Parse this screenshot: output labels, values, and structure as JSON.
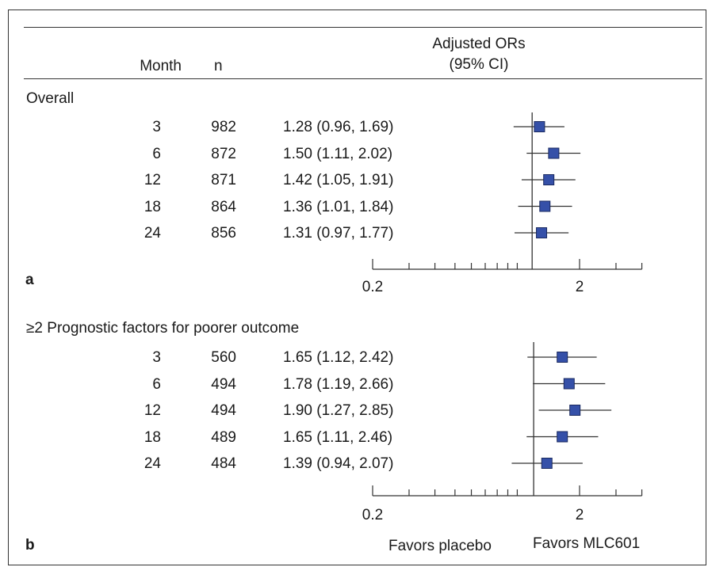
{
  "header": {
    "month_label": "Month",
    "n_label": "n",
    "or_label_line1": "Adjusted ORs",
    "or_label_line2": "(95% CI)"
  },
  "colors": {
    "marker_fill": "#3550a8",
    "marker_stroke": "#1a2a60",
    "line": "#333333"
  },
  "footer": {
    "favors_left": "Favors placebo",
    "favors_right": "Favors MLC601"
  },
  "chart_data": [
    {
      "type": "forest",
      "panel_label": "a",
      "group_title": "Overall",
      "scale": "log",
      "xlim": [
        0.2,
        4.0
      ],
      "null_value": 1.18,
      "xticks_labeled": [
        0.2,
        2
      ],
      "tick_labels": [
        "0.2",
        "2"
      ],
      "rows": [
        {
          "month": "3",
          "n": "982",
          "or": 1.28,
          "lo": 0.96,
          "hi": 1.69,
          "text": "1.28 (0.96, 1.69)"
        },
        {
          "month": "6",
          "n": "872",
          "or": 1.5,
          "lo": 1.11,
          "hi": 2.02,
          "text": "1.50 (1.11, 2.02)"
        },
        {
          "month": "12",
          "n": "871",
          "or": 1.42,
          "lo": 1.05,
          "hi": 1.91,
          "text": "1.42 (1.05, 1.91)"
        },
        {
          "month": "18",
          "n": "864",
          "or": 1.36,
          "lo": 1.01,
          "hi": 1.84,
          "text": "1.36 (1.01, 1.84)"
        },
        {
          "month": "24",
          "n": "856",
          "or": 1.31,
          "lo": 0.97,
          "hi": 1.77,
          "text": "1.31 (0.97, 1.77)"
        }
      ]
    },
    {
      "type": "forest",
      "panel_label": "b",
      "group_title": "≥2 Prognostic factors for poorer outcome",
      "scale": "log",
      "xlim": [
        0.2,
        4.0
      ],
      "null_value": 1.2,
      "xticks_labeled": [
        0.2,
        2
      ],
      "tick_labels": [
        "0.2",
        "2"
      ],
      "rows": [
        {
          "month": "3",
          "n": "560",
          "or": 1.65,
          "lo": 1.12,
          "hi": 2.42,
          "text": "1.65 (1.12, 2.42)"
        },
        {
          "month": "6",
          "n": "494",
          "or": 1.78,
          "lo": 1.19,
          "hi": 2.66,
          "text": "1.78 (1.19, 2.66)"
        },
        {
          "month": "12",
          "n": "494",
          "or": 1.9,
          "lo": 1.27,
          "hi": 2.85,
          "text": "1.90 (1.27, 2.85)"
        },
        {
          "month": "18",
          "n": "489",
          "or": 1.65,
          "lo": 1.11,
          "hi": 2.46,
          "text": "1.65 (1.11, 2.46)"
        },
        {
          "month": "24",
          "n": "484",
          "or": 1.39,
          "lo": 0.94,
          "hi": 2.07,
          "text": "1.39 (0.94, 2.07)"
        }
      ]
    }
  ]
}
